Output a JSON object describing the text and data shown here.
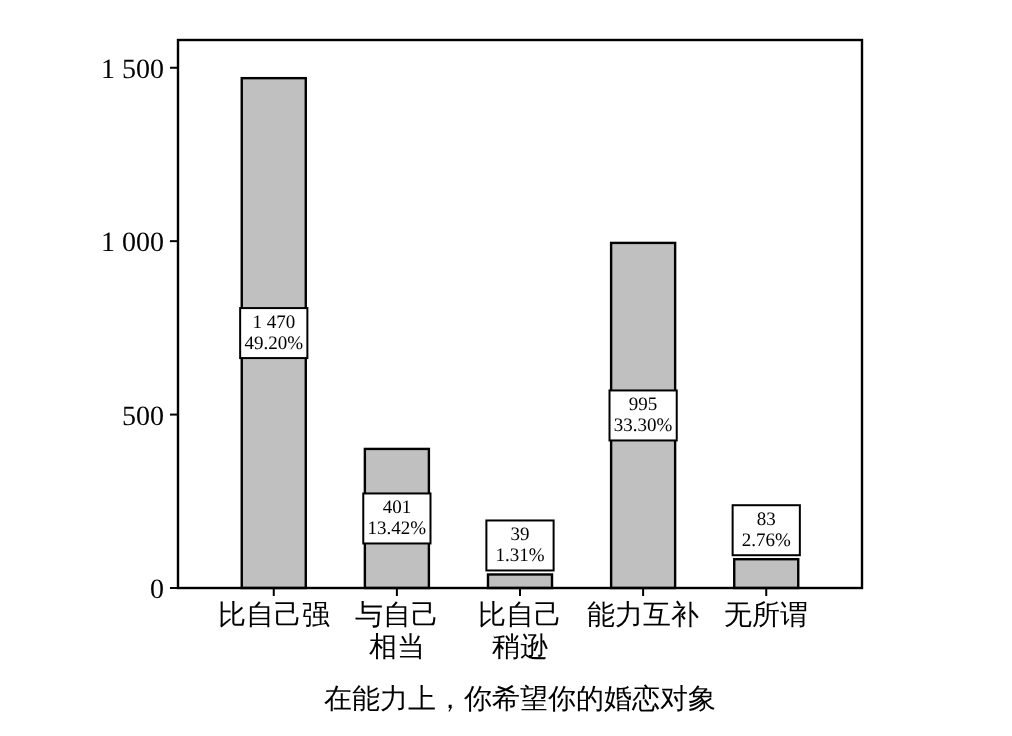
{
  "chart_data": {
    "type": "bar",
    "xlabel": "在能力上，你希望你的婚恋对象",
    "categories": [
      "比自己强",
      "与自己相当",
      "比自己稍逊",
      "能力互补",
      "无所谓"
    ],
    "values": [
      1470,
      401,
      39,
      995,
      83
    ],
    "value_labels": [
      "1 470\n49.20%",
      "401\n13.42%",
      "39\n1.31%",
      "995\n33.30%",
      "83\n2.76%"
    ],
    "color": "#c0c0c0",
    "ylim": [
      0,
      1580
    ],
    "yticks": [
      0,
      500,
      {
        "value": 1000,
        "label": "1 000"
      },
      {
        "value": 1500,
        "label": "1 500"
      }
    ],
    "grid": false
  }
}
